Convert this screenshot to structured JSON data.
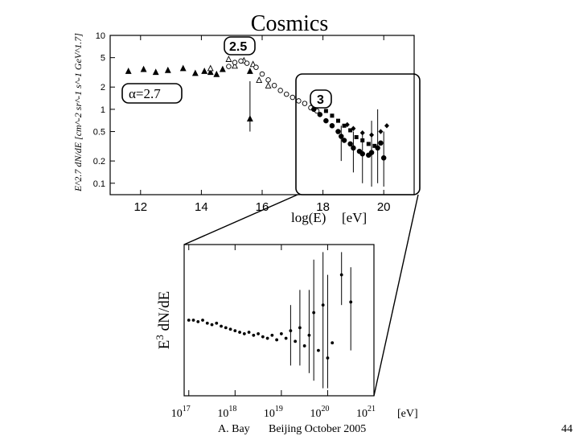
{
  "slide": {
    "title": "Cosmics",
    "author": "A. Bay",
    "event": "Beijing October 2005",
    "page": "44"
  },
  "colors": {
    "ink": "#000000",
    "frame": "#333333",
    "open_marker": "#ffffff"
  },
  "chart_data": [
    {
      "type": "scatter",
      "title": "",
      "xlabel": "log(E)",
      "xunit": "[eV]",
      "ylabel": "E^2.7 dN/dE [cm^-2 sr^-1 s^-1 GeV^1.7]",
      "xlim": [
        11,
        21
      ],
      "ylim": [
        0.07,
        10
      ],
      "yscale": "log",
      "xticks": [
        12,
        14,
        16,
        18,
        20
      ],
      "yticks": [
        0.1,
        0.2,
        0.5,
        1,
        2,
        5,
        10
      ],
      "ytick_labels": [
        "0.1",
        "0.2",
        "0.5",
        "1",
        "2",
        "5",
        "10"
      ],
      "annotations": [
        {
          "text": "α=2.7",
          "x": 12.3,
          "y": 1.5
        },
        {
          "text": "2.5",
          "x": 15.4,
          "y": 7
        },
        {
          "text": "3",
          "x": 17.8,
          "y": 1.4
        }
      ],
      "zoom_region": {
        "x": [
          17.0,
          21.0
        ],
        "y": [
          0.07,
          5.5
        ]
      },
      "series": [
        {
          "name": "filled triangles",
          "marker": "triangle-filled",
          "points": [
            [
              11.6,
              3.3
            ],
            [
              12.1,
              3.5
            ],
            [
              12.5,
              3.2
            ],
            [
              12.9,
              3.4
            ],
            [
              13.4,
              3.6
            ],
            [
              13.8,
              3.1
            ],
            [
              14.1,
              3.3
            ],
            [
              14.3,
              3.2
            ],
            [
              14.5,
              3.0
            ],
            [
              14.7,
              3.5
            ],
            [
              15.6,
              3.3
            ],
            [
              15.6,
              0.75
            ]
          ]
        },
        {
          "name": "open triangles",
          "marker": "triangle-open",
          "points": [
            [
              14.3,
              3.6
            ],
            [
              14.9,
              4.8
            ],
            [
              15.1,
              3.9
            ],
            [
              15.4,
              4.6
            ],
            [
              15.7,
              4.1
            ],
            [
              15.9,
              2.5
            ],
            [
              16.2,
              2.1
            ]
          ]
        },
        {
          "name": "open circles",
          "marker": "circle-open",
          "points": [
            [
              14.9,
              3.8
            ],
            [
              15.1,
              4.3
            ],
            [
              15.3,
              4.5
            ],
            [
              15.5,
              4.2
            ],
            [
              15.8,
              3.7
            ],
            [
              16.0,
              3.0
            ],
            [
              16.2,
              2.5
            ],
            [
              16.4,
              2.1
            ],
            [
              16.6,
              1.8
            ],
            [
              16.8,
              1.6
            ],
            [
              17.0,
              1.45
            ],
            [
              17.2,
              1.3
            ],
            [
              17.4,
              1.2
            ],
            [
              17.6,
              1.05
            ],
            [
              17.8,
              0.95
            ]
          ]
        },
        {
          "name": "filled circles",
          "marker": "circle-filled",
          "points": [
            [
              17.7,
              1.0
            ],
            [
              17.9,
              0.85
            ],
            [
              18.1,
              0.7
            ],
            [
              18.3,
              0.6
            ],
            [
              18.5,
              0.5
            ],
            [
              18.6,
              0.43
            ],
            [
              18.7,
              0.38
            ],
            [
              18.9,
              0.34
            ],
            [
              19.0,
              0.3
            ],
            [
              19.2,
              0.27
            ],
            [
              19.3,
              0.25
            ],
            [
              19.5,
              0.24
            ],
            [
              19.6,
              0.26
            ],
            [
              19.8,
              0.3
            ],
            [
              19.9,
              0.35
            ],
            [
              20.0,
              0.22
            ]
          ]
        },
        {
          "name": "filled squares",
          "marker": "square-filled",
          "points": [
            [
              18.1,
              0.95
            ],
            [
              18.3,
              0.82
            ],
            [
              18.5,
              0.7
            ],
            [
              18.7,
              0.6
            ],
            [
              18.9,
              0.52
            ],
            [
              19.1,
              0.42
            ],
            [
              19.3,
              0.38
            ],
            [
              19.5,
              0.34
            ],
            [
              19.7,
              0.32
            ]
          ]
        },
        {
          "name": "diamonds",
          "marker": "diamond-filled",
          "points": [
            [
              18.8,
              0.62
            ],
            [
              19.0,
              0.55
            ],
            [
              19.3,
              0.48
            ],
            [
              19.6,
              0.45
            ],
            [
              19.9,
              0.5
            ],
            [
              20.1,
              0.6
            ]
          ]
        }
      ]
    },
    {
      "type": "scatter",
      "title": "",
      "xlabel": "",
      "xunit": "[eV]",
      "ylabel": "E^3 dN/dE",
      "xscale": "log",
      "xlim": [
        16.9,
        21.0
      ],
      "ylim": [
        0,
        1
      ],
      "yticks_shown": false,
      "xticks": [
        17,
        18,
        19,
        20,
        21
      ],
      "xtick_labels": [
        "10^17",
        "10^18",
        "10^19",
        "10^20",
        "10^21"
      ],
      "points": [
        [
          17.0,
          0.5
        ],
        [
          17.1,
          0.5
        ],
        [
          17.2,
          0.49
        ],
        [
          17.3,
          0.5
        ],
        [
          17.4,
          0.48
        ],
        [
          17.5,
          0.47
        ],
        [
          17.6,
          0.48
        ],
        [
          17.7,
          0.46
        ],
        [
          17.8,
          0.45
        ],
        [
          17.9,
          0.44
        ],
        [
          18.0,
          0.43
        ],
        [
          18.1,
          0.42
        ],
        [
          18.2,
          0.41
        ],
        [
          18.3,
          0.42
        ],
        [
          18.4,
          0.4
        ],
        [
          18.5,
          0.41
        ],
        [
          18.6,
          0.39
        ],
        [
          18.7,
          0.38
        ],
        [
          18.8,
          0.4
        ],
        [
          18.9,
          0.37
        ],
        [
          19.0,
          0.41
        ],
        [
          19.1,
          0.38
        ],
        [
          19.2,
          0.43
        ],
        [
          19.3,
          0.36
        ],
        [
          19.4,
          0.45
        ],
        [
          19.5,
          0.33
        ],
        [
          19.6,
          0.4
        ],
        [
          19.7,
          0.55
        ],
        [
          19.8,
          0.3
        ],
        [
          19.9,
          0.6
        ],
        [
          20.0,
          0.25
        ],
        [
          20.1,
          0.35
        ],
        [
          20.3,
          0.8
        ],
        [
          20.5,
          0.62
        ]
      ],
      "error_bars": [
        [
          19.2,
          0.2,
          0.6
        ],
        [
          19.4,
          0.2,
          0.7
        ],
        [
          19.6,
          0.15,
          0.7
        ],
        [
          19.7,
          0.1,
          0.9
        ],
        [
          19.9,
          0.05,
          0.95
        ],
        [
          20.0,
          0.05,
          0.8
        ],
        [
          20.3,
          0.6,
          0.95
        ],
        [
          20.5,
          0.3,
          0.85
        ]
      ]
    }
  ]
}
